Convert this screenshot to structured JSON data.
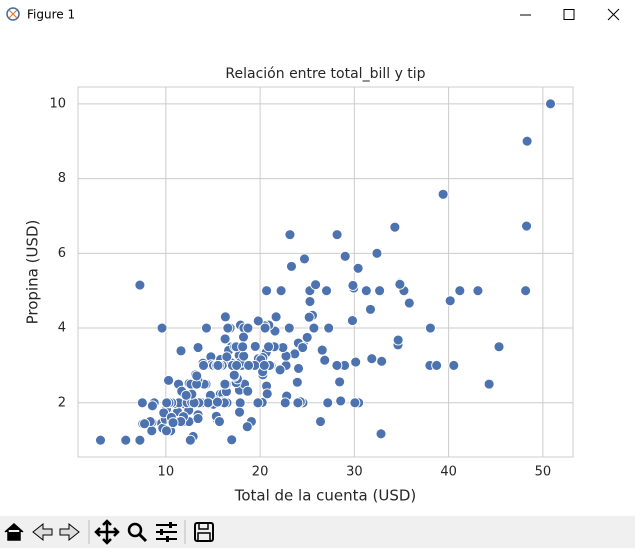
{
  "window": {
    "title": "Figure 1"
  },
  "chart_data": {
    "type": "scatter",
    "title": "Relación entre total_bill y tip",
    "x_label": "Total de la cuenta (USD)",
    "y_label": "Propina (USD)",
    "color": "#4c72b0",
    "grid": true,
    "xlim": [
      0.683,
      53.197
    ],
    "ylim": [
      0.55,
      10.45
    ],
    "xticks": [
      10,
      20,
      30,
      40,
      50
    ],
    "yticks": [
      2,
      4,
      6,
      8,
      10
    ],
    "x": [
      16.99,
      10.34,
      21.01,
      23.68,
      24.59,
      25.29,
      8.77,
      26.88,
      15.04,
      14.78,
      10.27,
      35.26,
      15.42,
      18.43,
      14.83,
      21.58,
      10.33,
      16.29,
      16.97,
      20.65,
      17.92,
      20.29,
      15.77,
      39.42,
      19.82,
      17.81,
      13.37,
      12.69,
      21.7,
      19.65,
      9.55,
      18.35,
      15.06,
      20.69,
      17.78,
      24.06,
      16.31,
      16.93,
      18.69,
      31.27,
      16.04,
      17.46,
      13.94,
      9.68,
      30.4,
      18.29,
      22.23,
      32.4,
      28.55,
      18.04,
      12.54,
      10.29,
      34.81,
      9.94,
      25.56,
      19.49,
      38.01,
      26.41,
      11.24,
      48.27,
      20.29,
      13.81,
      11.02,
      18.29,
      17.59,
      20.08,
      16.45,
      3.07,
      20.23,
      15.01,
      12.02,
      17.07,
      26.86,
      25.28,
      14.73,
      10.51,
      17.92,
      27.2,
      22.76,
      17.29,
      19.44,
      16.66,
      10.07,
      32.68,
      15.98,
      34.83,
      13.03,
      18.28,
      24.71,
      21.16,
      28.97,
      22.49,
      5.75,
      16.32,
      22.75,
      40.17,
      27.28,
      12.03,
      21.01,
      12.46,
      11.35,
      15.38,
      44.3,
      22.42,
      20.92,
      15.36,
      20.49,
      25.21,
      18.24,
      14.31,
      14.0,
      7.25,
      38.07,
      23.95,
      25.71,
      17.31,
      29.93,
      10.65,
      12.43,
      24.08,
      11.69,
      13.42,
      14.26,
      15.95,
      12.48,
      29.8,
      8.52,
      14.52,
      11.38,
      22.82,
      19.08,
      20.27,
      11.17,
      12.26,
      18.26,
      8.51,
      10.33,
      14.15,
      16.0,
      13.16,
      17.47,
      34.3,
      41.19,
      27.05,
      16.43,
      8.35,
      18.64,
      11.87,
      9.78,
      7.51,
      14.07,
      13.13,
      17.26,
      24.55,
      19.77,
      29.85,
      48.17,
      25.0,
      13.39,
      16.49,
      21.5,
      12.66,
      16.21,
      13.81,
      17.51,
      24.52,
      20.76,
      31.71,
      10.59,
      10.63,
      50.81,
      15.81,
      7.25,
      31.85,
      16.82,
      32.9,
      17.89,
      14.48,
      9.6,
      34.63,
      34.65,
      23.33,
      45.35,
      23.17,
      40.55,
      20.69,
      20.9,
      30.46,
      18.15,
      23.1,
      15.69,
      19.81,
      28.44,
      15.48,
      16.58,
      7.56,
      10.34,
      43.11,
      13.0,
      13.51,
      18.71,
      12.74,
      13.0,
      16.4,
      20.53,
      16.47,
      26.59,
      38.73,
      24.27,
      12.76,
      30.06,
      25.89,
      48.33,
      13.27,
      28.17,
      12.9,
      28.15,
      11.59,
      7.74,
      30.14,
      12.16,
      13.42,
      8.58,
      15.98,
      13.42,
      16.27,
      10.09,
      20.45,
      13.28,
      22.12,
      24.01,
      15.69,
      11.61,
      10.77,
      15.53,
      10.07,
      12.6,
      32.83,
      35.83,
      29.03,
      27.18,
      22.67,
      17.82,
      18.78
    ],
    "values": [
      1.01,
      1.66,
      3.5,
      3.31,
      3.61,
      4.71,
      2.0,
      3.12,
      1.96,
      3.23,
      1.71,
      5.0,
      1.57,
      3.0,
      3.02,
      3.92,
      1.67,
      3.71,
      3.5,
      3.35,
      4.08,
      2.75,
      2.23,
      7.58,
      3.18,
      2.34,
      2.0,
      2.0,
      4.3,
      3.0,
      1.45,
      2.5,
      3.0,
      2.45,
      3.27,
      3.6,
      2.0,
      3.07,
      2.31,
      5.0,
      2.24,
      2.54,
      3.06,
      1.32,
      5.6,
      3.0,
      5.0,
      6.0,
      2.05,
      3.0,
      2.5,
      2.6,
      5.2,
      1.56,
      4.34,
      3.51,
      3.0,
      1.5,
      1.76,
      6.73,
      3.21,
      2.0,
      1.98,
      3.76,
      2.64,
      3.15,
      2.47,
      1.0,
      2.01,
      2.09,
      1.97,
      3.0,
      3.14,
      5.0,
      2.2,
      1.25,
      3.08,
      4.0,
      3.0,
      2.71,
      3.0,
      3.4,
      1.83,
      5.0,
      2.03,
      5.17,
      2.0,
      4.0,
      5.85,
      3.0,
      3.0,
      3.5,
      1.0,
      4.3,
      3.25,
      4.73,
      4.0,
      1.5,
      3.0,
      1.5,
      2.5,
      3.0,
      2.5,
      3.48,
      4.08,
      1.64,
      4.06,
      4.29,
      3.76,
      4.0,
      3.0,
      1.0,
      4.0,
      2.55,
      4.0,
      3.5,
      5.07,
      1.5,
      1.8,
      2.92,
      2.31,
      1.68,
      2.5,
      2.0,
      2.52,
      4.2,
      1.48,
      2.0,
      2.0,
      2.18,
      1.5,
      2.83,
      1.5,
      2.0,
      3.25,
      1.25,
      2.0,
      2.0,
      2.0,
      2.75,
      3.5,
      6.7,
      5.0,
      5.0,
      2.3,
      1.5,
      1.36,
      1.63,
      1.73,
      2.0,
      2.5,
      2.0,
      2.74,
      2.0,
      2.0,
      5.14,
      5.0,
      3.75,
      2.61,
      2.0,
      3.5,
      2.5,
      2.0,
      2.0,
      3.0,
      3.48,
      2.24,
      4.5,
      1.61,
      2.0,
      10.0,
      3.16,
      5.15,
      3.18,
      4.0,
      3.11,
      2.0,
      2.0,
      4.0,
      3.55,
      3.68,
      5.65,
      3.5,
      6.5,
      3.0,
      5.0,
      3.5,
      2.0,
      3.5,
      4.0,
      1.5,
      4.19,
      2.56,
      2.02,
      4.0,
      1.44,
      2.0,
      5.0,
      2.0,
      2.0,
      4.0,
      2.01,
      2.0,
      2.5,
      4.0,
      3.23,
      3.41,
      3.0,
      2.03,
      2.23,
      2.0,
      5.16,
      9.0,
      2.5,
      6.5,
      1.1,
      3.0,
      1.5,
      1.44,
      3.09,
      2.2,
      3.48,
      1.92,
      3.0,
      1.58,
      2.5,
      2.0,
      3.0,
      2.72,
      2.88,
      2.0,
      3.0,
      3.39,
      1.47,
      3.0,
      1.25,
      1.0,
      1.17,
      4.67,
      5.92,
      2.0,
      2.0,
      1.75,
      3.0
    ]
  }
}
